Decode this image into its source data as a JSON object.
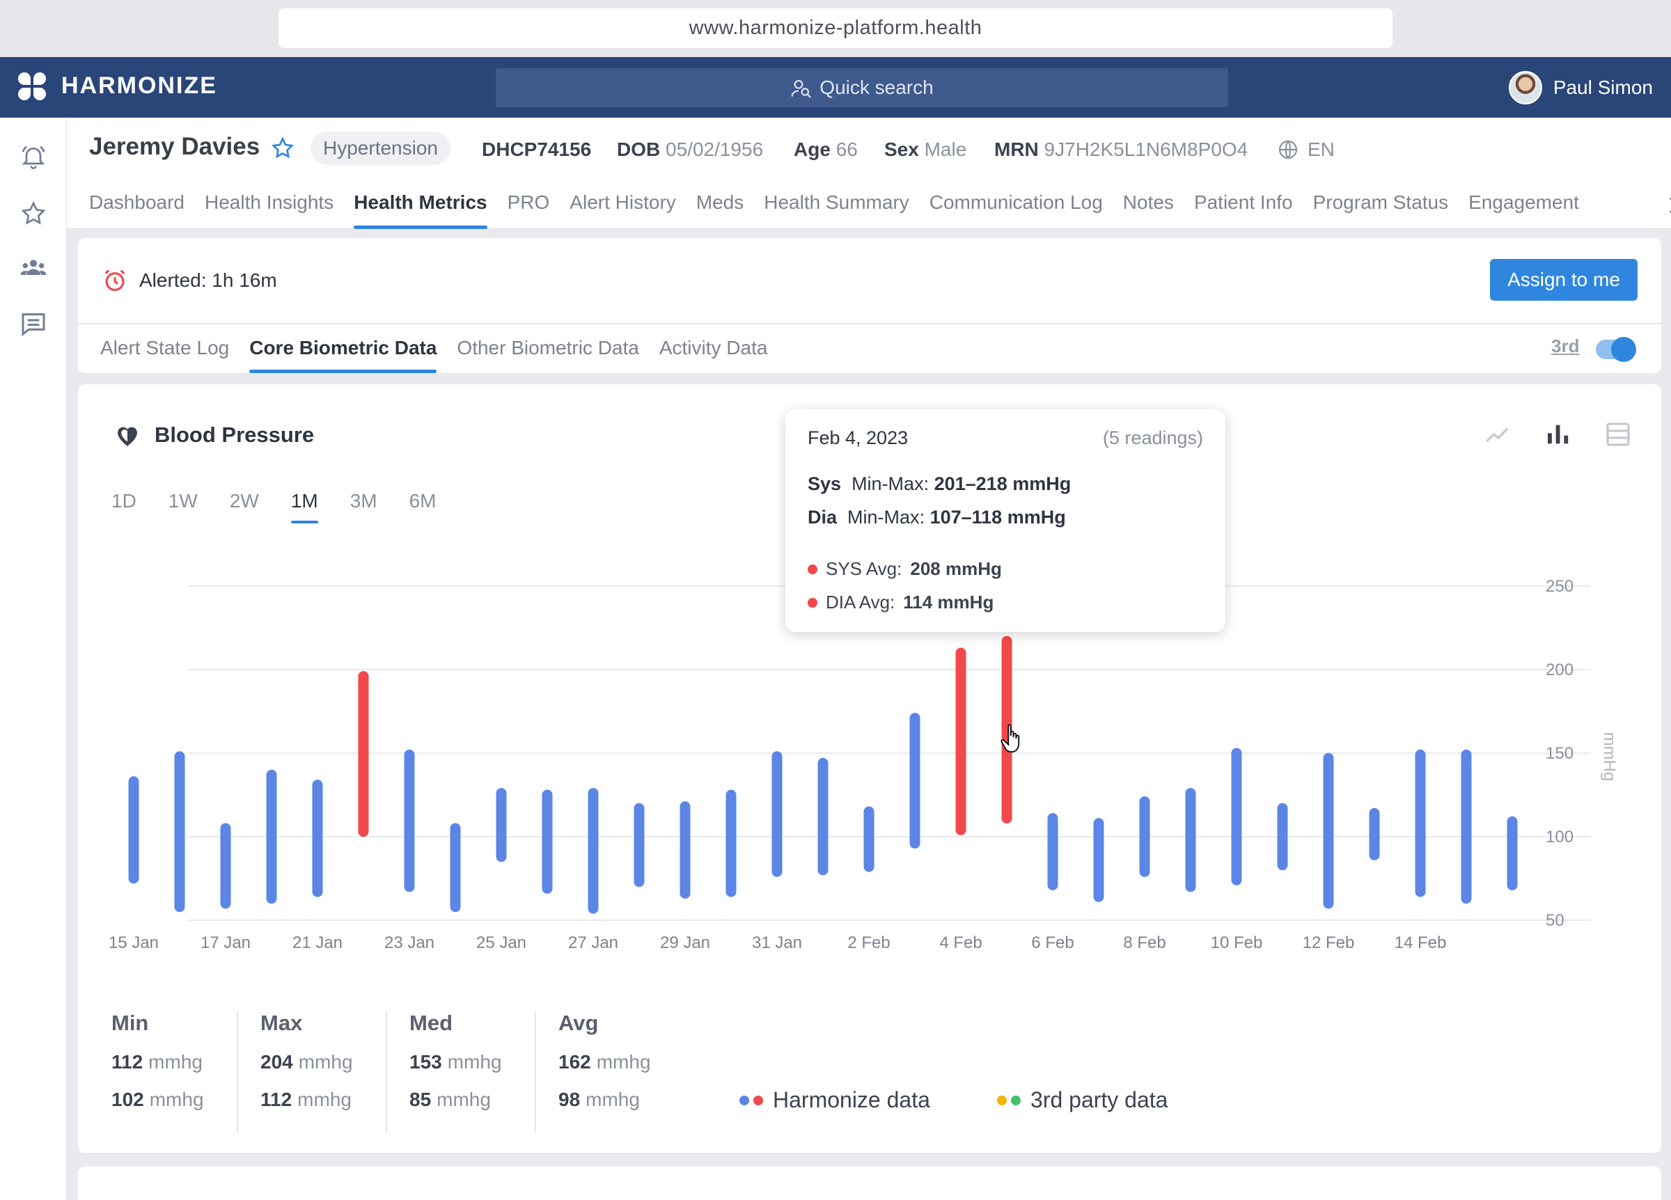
{
  "browser": {
    "url": "www.harmonize-platform.health"
  },
  "appbar": {
    "brand": "HARMONIZE",
    "search_placeholder": "Quick search",
    "user_name": "Paul Simon"
  },
  "patient": {
    "name": "Jeremy Davies",
    "condition": "Hypertension",
    "id": "DHCP74156",
    "dob_label": "DOB",
    "dob": "05/02/1956",
    "age_label": "Age",
    "age": "66",
    "sex_label": "Sex",
    "sex": "Male",
    "mrn_label": "MRN",
    "mrn": "9J7H2K5L1N6M8P0O4",
    "language": "EN"
  },
  "tabs": [
    {
      "label": "Dashboard"
    },
    {
      "label": "Health Insights"
    },
    {
      "label": "Health Metrics",
      "active": true
    },
    {
      "label": "PRO"
    },
    {
      "label": "Alert History"
    },
    {
      "label": "Meds"
    },
    {
      "label": "Health Summary"
    },
    {
      "label": "Communication Log"
    },
    {
      "label": "Notes"
    },
    {
      "label": "Patient Info"
    },
    {
      "label": "Program Status"
    },
    {
      "label": "Engagement"
    }
  ],
  "alert": {
    "text": "Alerted: 1h 16m",
    "assign_label": "Assign to me",
    "third_label": "3rd",
    "third_toggle_on": true
  },
  "subtabs": [
    {
      "label": "Alert State Log"
    },
    {
      "label": "Core Biometric Data",
      "active": true
    },
    {
      "label": "Other Biometric Data"
    },
    {
      "label": "Activity Data"
    }
  ],
  "chart_title": "Blood Pressure",
  "ranges": [
    "1D",
    "1W",
    "2W",
    "1M",
    "3M",
    "6M"
  ],
  "active_range": "1M",
  "colors": {
    "normal": "#5b86e5",
    "alert": "#f2484b",
    "accent": "#2f86de",
    "harmonize_1": "#5b86e5",
    "harmonize_2": "#f2484b",
    "third_1": "#f5b400",
    "third_2": "#3fc26b"
  },
  "tooltip": {
    "date": "Feb 4, 2023",
    "count": "(5 readings)",
    "sys_label": "Sys",
    "sys_minmax_label": "Min-Max:",
    "sys_minmax": "201–218 mmHg",
    "dia_label": "Dia",
    "dia_minmax_label": "Min-Max:",
    "dia_minmax": "107–118 mmHg",
    "sys_avg_label": "SYS Avg:",
    "sys_avg": "208 mmHg",
    "dia_avg_label": "DIA Avg:",
    "dia_avg": "114 mmHg"
  },
  "chart_data": {
    "type": "bar",
    "title": "Blood Pressure",
    "ylabel": "mmHg",
    "ylim": [
      50,
      250
    ],
    "yticks": [
      50,
      100,
      150,
      200,
      250
    ],
    "x_tick_labels": [
      "15 Jan",
      "17 Jan",
      "21 Jan",
      "23 Jan",
      "25 Jan",
      "27 Jan",
      "29 Jan",
      "31 Jan",
      "2 Feb",
      "4 Feb",
      "6 Feb",
      "8 Feb",
      "10 Feb",
      "12 Feb",
      "14 Feb"
    ],
    "grid": true,
    "series": [
      {
        "name": "range",
        "values": [
          [
            75,
            133
          ],
          [
            58,
            148
          ],
          [
            60,
            105
          ],
          [
            63,
            137
          ],
          [
            67,
            131
          ],
          [
            103,
            196
          ],
          [
            70,
            149
          ],
          [
            58,
            105
          ],
          [
            88,
            126
          ],
          [
            69,
            125
          ],
          [
            57,
            126
          ],
          [
            73,
            117
          ],
          [
            66,
            118
          ],
          [
            67,
            125
          ],
          [
            79,
            148
          ],
          [
            80,
            144
          ],
          [
            82,
            115
          ],
          [
            96,
            171
          ],
          [
            104,
            210
          ],
          [
            111,
            217
          ],
          [
            71,
            111
          ],
          [
            64,
            108
          ],
          [
            79,
            121
          ],
          [
            70,
            126
          ],
          [
            74,
            150
          ],
          [
            83,
            117
          ],
          [
            60,
            147
          ],
          [
            89,
            114
          ],
          [
            67,
            149
          ],
          [
            63,
            149
          ],
          [
            71,
            109
          ]
        ],
        "alert_flags": [
          0,
          0,
          0,
          0,
          0,
          1,
          0,
          0,
          0,
          0,
          0,
          0,
          0,
          0,
          0,
          0,
          0,
          0,
          1,
          1,
          0,
          0,
          0,
          0,
          0,
          0,
          0,
          0,
          0,
          0,
          0
        ]
      }
    ]
  },
  "stats": {
    "unit": "mmhg",
    "columns": [
      {
        "label": "Min",
        "sys": "112",
        "dia": "102"
      },
      {
        "label": "Max",
        "sys": "204",
        "dia": "112"
      },
      {
        "label": "Med",
        "sys": "153",
        "dia": "85"
      },
      {
        "label": "Avg",
        "sys": "162",
        "dia": "98"
      }
    ]
  },
  "legend": {
    "harmonize": "Harmonize data",
    "third_party": "3rd party data"
  }
}
